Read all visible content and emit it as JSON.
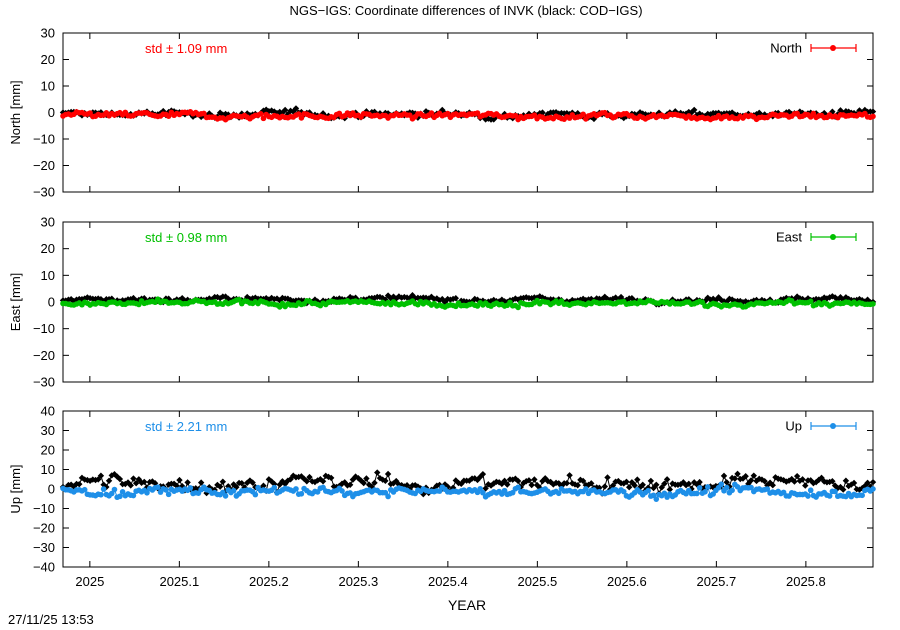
{
  "title": "NGS−IGS: Coordinate differences of INVK (black: COD−IGS)",
  "timestamp": "27/11/25 13:53",
  "xlabel": "YEAR",
  "xticks": [
    2025,
    2025.1,
    2025.2,
    2025.3,
    2025.4,
    2025.5,
    2025.6,
    2025.7,
    2025.8
  ],
  "xlim": [
    2024.97,
    2025.875
  ],
  "colors": {
    "black_series": "#000000",
    "north": "#ff0000",
    "east": "#00c000",
    "up": "#1e8fe8"
  },
  "chart_data": [
    {
      "type": "scatter",
      "panel": "north",
      "ylabel": "North [mm]",
      "ylim": [
        -30,
        30
      ],
      "yticks": [
        -30,
        -20,
        -10,
        0,
        10,
        20,
        30
      ],
      "std_label": "std ± 1.09 mm",
      "legend": "North",
      "legend_position": "top-right",
      "series": [
        {
          "name": "North",
          "color": "#ff0000",
          "mean": -1.2,
          "std": 1.09,
          "x": [
            2024.97,
            2025.875
          ]
        },
        {
          "color": "#000000",
          "mean": -0.6,
          "std": 1.2,
          "x": [
            2024.97,
            2025.875
          ]
        }
      ]
    },
    {
      "type": "scatter",
      "panel": "east",
      "ylabel": "East [mm]",
      "ylim": [
        -30,
        30
      ],
      "yticks": [
        -30,
        -20,
        -10,
        0,
        10,
        20,
        30
      ],
      "std_label": "std ± 0.98 mm",
      "legend": "East",
      "legend_position": "top-right",
      "series": [
        {
          "name": "East",
          "color": "#00c000",
          "mean": -0.6,
          "std": 0.98,
          "x": [
            2024.97,
            2025.875
          ]
        },
        {
          "color": "#000000",
          "mean": 1.0,
          "std": 0.9,
          "x": [
            2024.97,
            2025.875
          ]
        }
      ]
    },
    {
      "type": "scatter",
      "panel": "up",
      "ylabel": "Up [mm]",
      "ylim": [
        -40,
        40
      ],
      "yticks": [
        -40,
        -30,
        -20,
        -10,
        0,
        10,
        20,
        30,
        40
      ],
      "std_label": "std ± 2.21 mm",
      "legend": "Up",
      "legend_position": "top-right",
      "series": [
        {
          "name": "Up",
          "color": "#1e8fe8",
          "mean": -1.5,
          "std": 2.21,
          "x": [
            2024.97,
            2025.875
          ]
        },
        {
          "color": "#000000",
          "mean": 3.0,
          "std": 3.8,
          "x": [
            2024.97,
            2025.875
          ]
        }
      ]
    }
  ]
}
